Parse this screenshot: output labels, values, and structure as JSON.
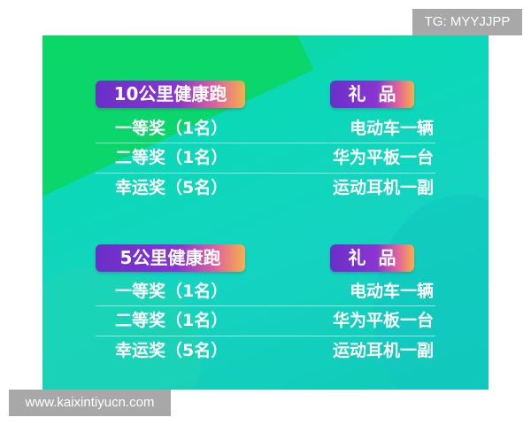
{
  "watermark_top": "TG: MYYJJPP",
  "watermark_bottom": "www.kaixintiyucn.com",
  "sections": [
    {
      "title": "10公里健康跑",
      "prize_header": "礼  品",
      "rows": [
        {
          "award": "一等奖（1名）",
          "prize": "电动车一辆"
        },
        {
          "award": "二等奖（1名）",
          "prize": "华为平板一台"
        },
        {
          "award": "幸运奖（5名）",
          "prize": "运动耳机一副"
        }
      ]
    },
    {
      "title": "5公里健康跑",
      "prize_header": "礼  品",
      "rows": [
        {
          "award": "一等奖（1名）",
          "prize": "电动车一辆"
        },
        {
          "award": "二等奖（1名）",
          "prize": "华为平板一台"
        },
        {
          "award": "幸运奖（5名）",
          "prize": "运动耳机一副"
        }
      ]
    }
  ]
}
